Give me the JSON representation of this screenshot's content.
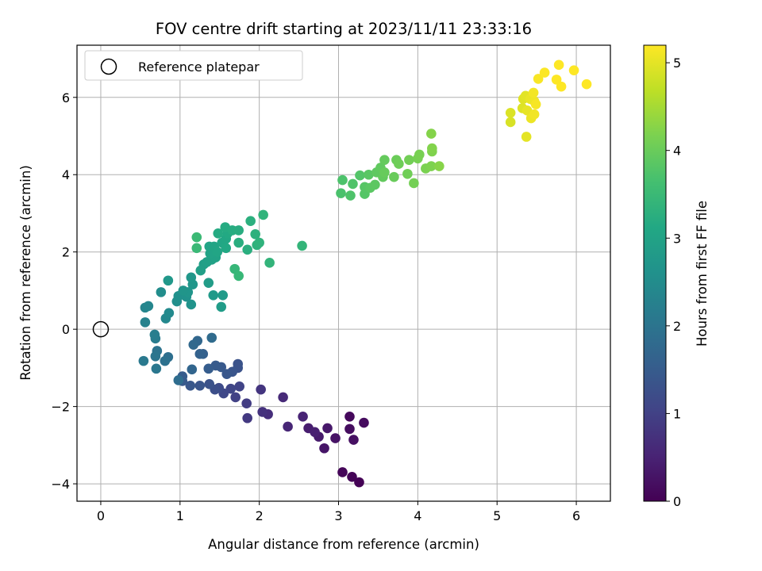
{
  "chart_data": {
    "type": "scatter",
    "title": "FOV centre drift starting at 2023/11/11 23:33:16",
    "xlabel": "Angular distance from reference (arcmin)",
    "ylabel": "Rotation from reference (arcmin)",
    "colorbar_label": "Hours from first FF file",
    "xlim": [
      -0.3,
      6.43
    ],
    "ylim": [
      -4.45,
      7.35
    ],
    "xticks": [
      0,
      1,
      2,
      3,
      4,
      5,
      6
    ],
    "yticks": [
      -4,
      -2,
      0,
      2,
      4,
      6
    ],
    "colorbar_range": [
      0,
      5.2
    ],
    "colorbar_ticks": [
      0,
      1,
      2,
      3,
      4,
      5
    ],
    "colormap": "viridis",
    "grid": true,
    "legend": {
      "position": "top-left",
      "entries": [
        "Reference platepar"
      ]
    },
    "reference_point": {
      "label": "Reference platepar",
      "x": 0,
      "y": 0
    },
    "point_format": "[x, y, hours]",
    "points": [
      [
        3.26,
        -3.96,
        0.02
      ],
      [
        3.17,
        -3.82,
        0.05
      ],
      [
        3.05,
        -3.7,
        0.08
      ],
      [
        3.14,
        -2.26,
        0.12
      ],
      [
        3.32,
        -2.42,
        0.15
      ],
      [
        3.14,
        -2.58,
        0.18
      ],
      [
        3.19,
        -2.86,
        0.22
      ],
      [
        2.96,
        -2.82,
        0.26
      ],
      [
        2.82,
        -3.08,
        0.3
      ],
      [
        2.86,
        -2.56,
        0.34
      ],
      [
        2.75,
        -2.78,
        0.38
      ],
      [
        2.62,
        -2.56,
        0.42
      ],
      [
        2.7,
        -2.66,
        0.46
      ],
      [
        2.55,
        -2.26,
        0.52
      ],
      [
        2.36,
        -2.52,
        0.56
      ],
      [
        2.3,
        -1.76,
        0.62
      ],
      [
        2.11,
        -2.2,
        0.68
      ],
      [
        2.04,
        -2.14,
        0.74
      ],
      [
        2.02,
        -1.56,
        0.8
      ],
      [
        1.85,
        -2.3,
        0.86
      ],
      [
        1.84,
        -1.92,
        0.92
      ],
      [
        1.7,
        -1.76,
        1.0
      ],
      [
        1.75,
        -1.48,
        1.04
      ],
      [
        1.64,
        -1.54,
        1.08
      ],
      [
        1.55,
        -1.66,
        1.12
      ],
      [
        1.49,
        -1.52,
        1.18
      ],
      [
        1.44,
        -1.56,
        1.24
      ],
      [
        1.37,
        -1.42,
        1.3
      ],
      [
        1.25,
        -1.46,
        1.36
      ],
      [
        1.13,
        -1.46,
        1.4
      ],
      [
        1.03,
        -1.34,
        1.46
      ],
      [
        1.03,
        -1.22,
        1.5
      ],
      [
        1.73,
        -1.0,
        1.3
      ],
      [
        1.73,
        -0.9,
        1.32
      ],
      [
        1.66,
        -1.1,
        1.36
      ],
      [
        1.59,
        -1.16,
        1.4
      ],
      [
        1.52,
        -0.98,
        1.44
      ],
      [
        1.45,
        -0.94,
        1.48
      ],
      [
        1.36,
        -1.02,
        1.52
      ],
      [
        1.29,
        -0.64,
        1.58
      ],
      [
        1.25,
        -0.64,
        1.62
      ],
      [
        1.15,
        -1.04,
        1.68
      ],
      [
        1.22,
        -0.3,
        1.72
      ],
      [
        1.17,
        -0.4,
        1.76
      ],
      [
        1.4,
        -0.22,
        1.8
      ],
      [
        0.98,
        -1.32,
        1.86
      ],
      [
        0.85,
        -0.72,
        1.9
      ],
      [
        0.81,
        -0.82,
        1.94
      ],
      [
        0.71,
        -0.56,
        1.98
      ],
      [
        0.69,
        -0.7,
        2.02
      ],
      [
        0.7,
        -1.02,
        2.06
      ],
      [
        0.54,
        -0.82,
        2.1
      ],
      [
        0.69,
        -0.24,
        2.16
      ],
      [
        0.68,
        -0.14,
        2.2
      ],
      [
        0.56,
        0.18,
        2.28
      ],
      [
        0.56,
        0.56,
        2.34
      ],
      [
        0.6,
        0.6,
        2.38
      ],
      [
        0.82,
        0.28,
        2.42
      ],
      [
        0.86,
        0.42,
        2.46
      ],
      [
        0.76,
        0.96,
        2.52
      ],
      [
        0.96,
        0.72,
        2.56
      ],
      [
        0.98,
        0.86,
        2.6
      ],
      [
        1.08,
        0.84,
        2.62
      ],
      [
        1.14,
        0.64,
        2.64
      ],
      [
        1.1,
        0.96,
        2.68
      ],
      [
        1.04,
        1.0,
        2.7
      ],
      [
        1.16,
        1.16,
        2.72
      ],
      [
        1.14,
        1.34,
        2.74
      ],
      [
        0.85,
        1.26,
        2.76
      ],
      [
        1.42,
        0.88,
        2.8
      ],
      [
        1.54,
        0.88,
        2.82
      ],
      [
        1.52,
        0.58,
        2.84
      ],
      [
        1.36,
        1.2,
        2.86
      ],
      [
        1.3,
        1.68,
        2.9
      ],
      [
        1.26,
        1.52,
        2.92
      ],
      [
        1.34,
        1.74,
        2.94
      ],
      [
        1.4,
        1.8,
        2.96
      ],
      [
        1.45,
        1.86,
        2.98
      ],
      [
        1.38,
        1.96,
        3.0
      ],
      [
        1.37,
        2.14,
        3.02
      ],
      [
        1.43,
        2.14,
        3.04
      ],
      [
        1.47,
        2.0,
        3.06
      ],
      [
        1.53,
        2.24,
        3.08
      ],
      [
        1.58,
        2.34,
        3.1
      ],
      [
        1.58,
        2.1,
        3.12
      ],
      [
        1.6,
        2.48,
        3.14
      ],
      [
        1.48,
        2.48,
        3.16
      ],
      [
        1.57,
        2.64,
        3.18
      ],
      [
        1.66,
        2.56,
        3.2
      ],
      [
        1.74,
        2.56,
        3.22
      ],
      [
        1.74,
        2.24,
        3.24
      ],
      [
        1.85,
        2.06,
        3.26
      ],
      [
        1.89,
        2.8,
        3.28
      ],
      [
        1.95,
        2.46,
        3.3
      ],
      [
        1.97,
        2.18,
        3.32
      ],
      [
        2.0,
        2.24,
        3.34
      ],
      [
        2.05,
        2.96,
        3.36
      ],
      [
        2.13,
        1.72,
        3.38
      ],
      [
        2.54,
        2.16,
        3.4
      ],
      [
        1.69,
        1.56,
        3.44
      ],
      [
        1.74,
        1.38,
        3.46
      ],
      [
        1.21,
        2.1,
        3.48
      ],
      [
        1.21,
        2.38,
        3.5
      ],
      [
        3.03,
        3.52,
        3.7
      ],
      [
        3.05,
        3.86,
        3.72
      ],
      [
        3.15,
        3.46,
        3.74
      ],
      [
        3.18,
        3.76,
        3.76
      ],
      [
        3.27,
        3.98,
        3.78
      ],
      [
        3.33,
        3.5,
        3.8
      ],
      [
        3.33,
        3.68,
        3.82
      ],
      [
        3.38,
        4.0,
        3.84
      ],
      [
        3.4,
        3.66,
        3.86
      ],
      [
        3.46,
        3.74,
        3.88
      ],
      [
        3.48,
        4.06,
        3.9
      ],
      [
        3.53,
        4.18,
        3.92
      ],
      [
        3.56,
        3.94,
        3.94
      ],
      [
        3.58,
        4.38,
        3.96
      ],
      [
        3.58,
        4.06,
        3.98
      ],
      [
        3.7,
        3.94,
        4.0
      ],
      [
        3.73,
        4.38,
        4.02
      ],
      [
        3.76,
        4.28,
        4.04
      ],
      [
        3.87,
        4.02,
        4.06
      ],
      [
        3.89,
        4.38,
        4.08
      ],
      [
        3.95,
        3.78,
        4.1
      ],
      [
        4.0,
        4.42,
        4.12
      ],
      [
        4.02,
        4.52,
        4.14
      ],
      [
        4.1,
        4.16,
        4.16
      ],
      [
        4.17,
        4.22,
        4.18
      ],
      [
        4.18,
        4.6,
        4.2
      ],
      [
        4.18,
        4.68,
        4.22
      ],
      [
        4.17,
        5.06,
        4.24
      ],
      [
        4.27,
        4.22,
        4.26
      ],
      [
        5.17,
        5.36,
        4.9
      ],
      [
        5.17,
        5.6,
        4.92
      ],
      [
        5.32,
        5.72,
        4.94
      ],
      [
        5.33,
        5.96,
        4.96
      ],
      [
        5.36,
        6.04,
        4.98
      ],
      [
        5.37,
        4.98,
        5.0
      ],
      [
        5.38,
        5.66,
        5.02
      ],
      [
        5.42,
        5.96,
        5.04
      ],
      [
        5.43,
        5.46,
        5.06
      ],
      [
        5.47,
        5.9,
        5.08
      ],
      [
        5.47,
        5.56,
        5.1
      ],
      [
        5.46,
        6.12,
        5.12
      ],
      [
        5.49,
        5.82,
        5.14
      ],
      [
        5.52,
        6.48,
        5.16
      ],
      [
        5.6,
        6.64,
        5.18
      ],
      [
        5.75,
        6.46,
        5.2
      ],
      [
        5.78,
        6.84,
        5.22
      ],
      [
        5.81,
        6.28,
        5.24
      ],
      [
        5.97,
        6.7,
        5.26
      ],
      [
        6.13,
        6.34,
        5.28
      ]
    ]
  }
}
